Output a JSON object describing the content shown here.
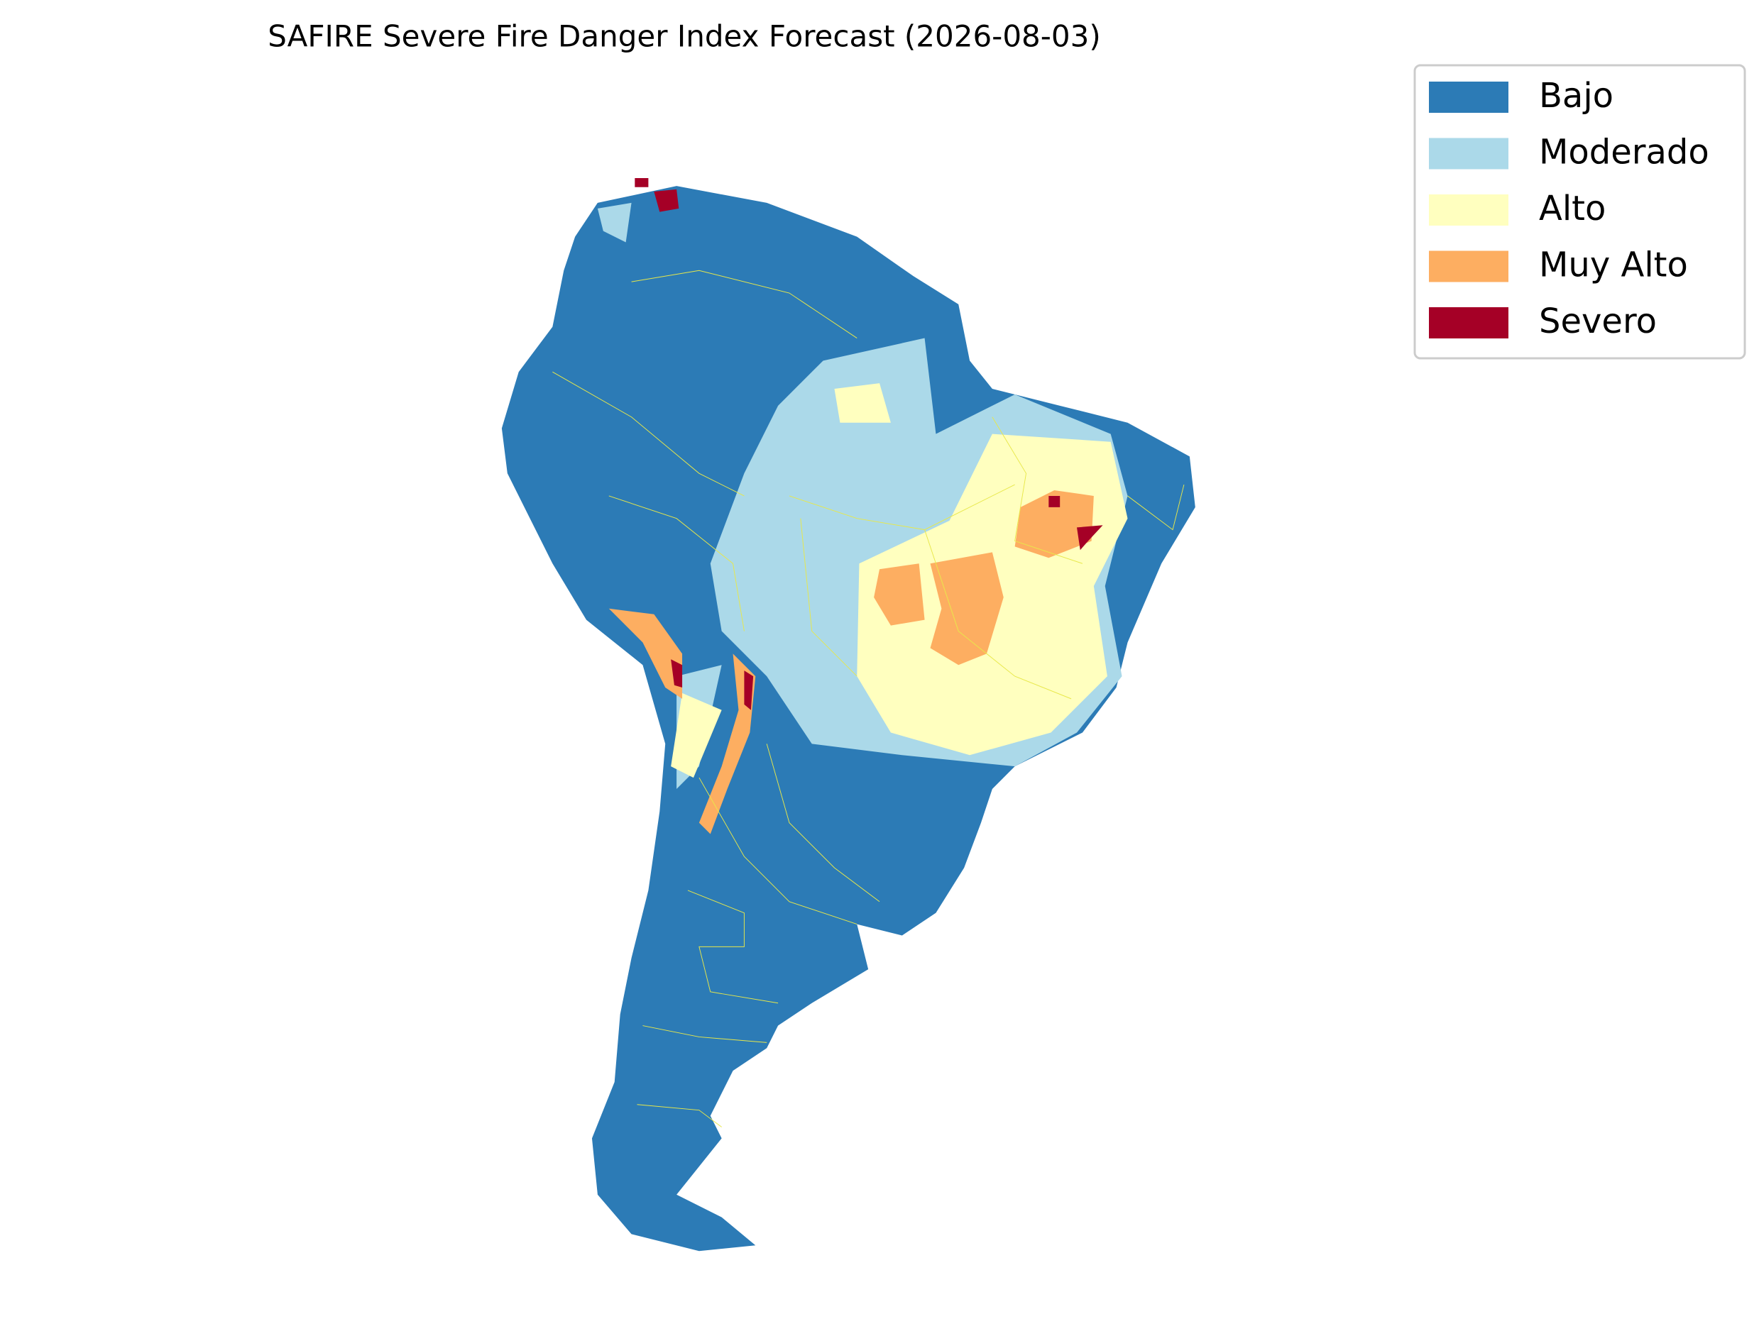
{
  "title": "SAFIRE Severe Fire Danger Index Forecast (2026-08-03)",
  "legend": [
    {
      "label": "Bajo",
      "color": "#2c7bb6"
    },
    {
      "label": "Moderado",
      "color": "#abd9e9"
    },
    {
      "label": "Alto",
      "color": "#ffffbf"
    },
    {
      "label": "Muy Alto",
      "color": "#fdae61"
    },
    {
      "label": "Severo",
      "color": "#a50026"
    }
  ]
}
